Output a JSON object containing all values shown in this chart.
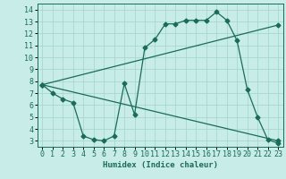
{
  "title": "",
  "xlabel": "Humidex (Indice chaleur)",
  "bg_color": "#c8ede8",
  "grid_color": "#a0d4ce",
  "line_color": "#1a6b5a",
  "spine_color": "#1a6b5a",
  "xlim": [
    -0.5,
    23.5
  ],
  "ylim": [
    2.5,
    14.5
  ],
  "xticks": [
    0,
    1,
    2,
    3,
    4,
    5,
    6,
    7,
    8,
    9,
    10,
    11,
    12,
    13,
    14,
    15,
    16,
    17,
    18,
    19,
    20,
    21,
    22,
    23
  ],
  "yticks": [
    3,
    4,
    5,
    6,
    7,
    8,
    9,
    10,
    11,
    12,
    13,
    14
  ],
  "line1_x": [
    0,
    1,
    2,
    3,
    4,
    5,
    6,
    7,
    8,
    9,
    10,
    11,
    12,
    13,
    14,
    15,
    16,
    17,
    18,
    19,
    20,
    21,
    22,
    23
  ],
  "line1_y": [
    7.7,
    7.0,
    6.5,
    6.2,
    3.4,
    3.1,
    3.0,
    3.4,
    7.8,
    5.2,
    10.8,
    11.5,
    12.8,
    12.8,
    13.1,
    13.1,
    13.1,
    13.8,
    13.1,
    11.4,
    7.3,
    5.0,
    3.1,
    2.8
  ],
  "line2_x": [
    0,
    23
  ],
  "line2_y": [
    7.7,
    12.7
  ],
  "line3_x": [
    0,
    23
  ],
  "line3_y": [
    7.7,
    3.0
  ],
  "xlabel_fontsize": 6.5,
  "tick_fontsize": 6.0,
  "marker_size": 2.5,
  "line_width": 0.9
}
